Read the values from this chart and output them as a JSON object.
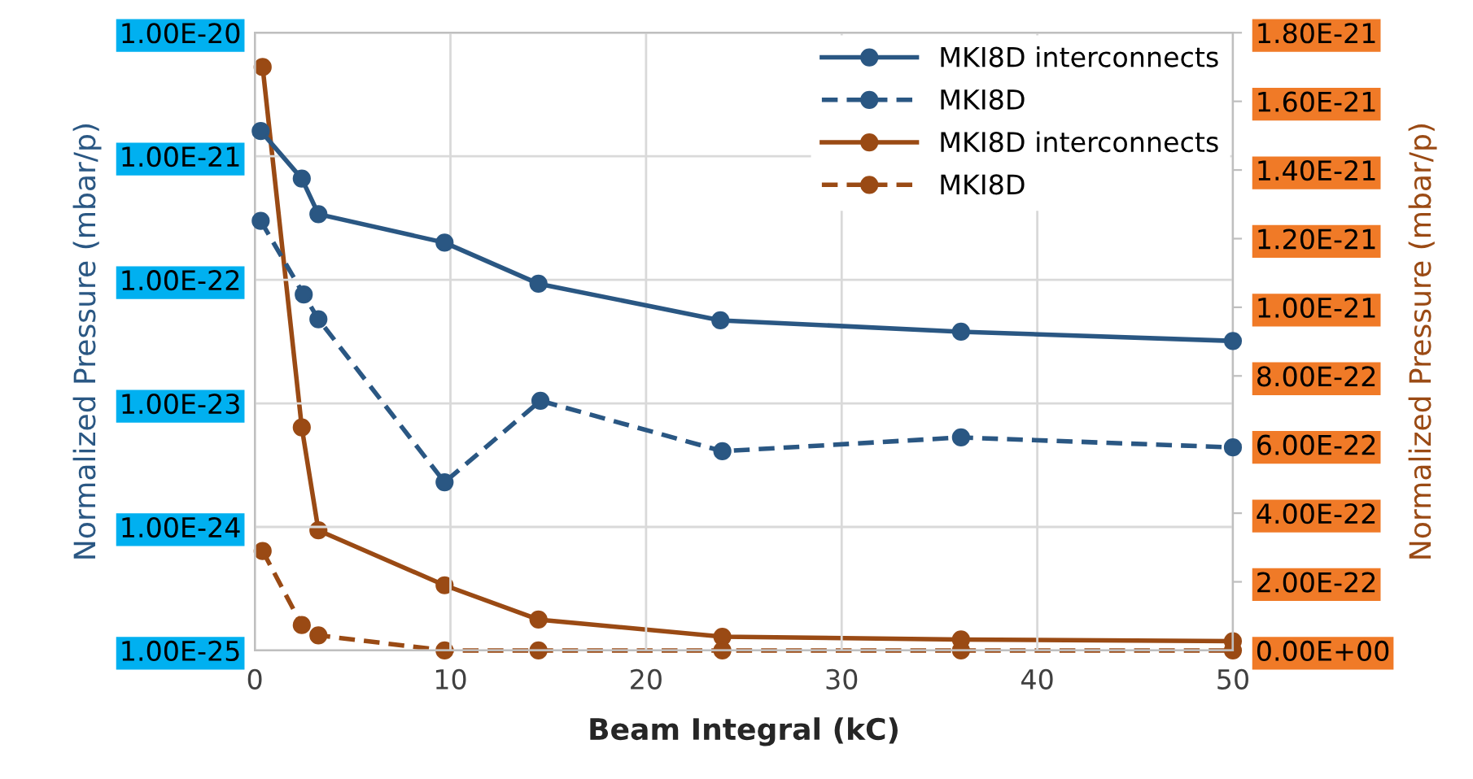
{
  "chart_data": {
    "type": "line",
    "xlabel": "Beam Integral (kC)",
    "ylabel": "Normalized Pressure (mbar/p)",
    "y2label": "Normalized Pressure (mbar/p)",
    "log": "y",
    "marker": "circle",
    "grid": true,
    "legend": "top right",
    "xlim": [
      0,
      50
    ],
    "xticks": [
      0,
      10,
      20,
      30,
      40,
      50
    ],
    "ylim": [
      1e-25,
      1e-20
    ],
    "yticks": [
      {
        "value": 1e-25,
        "label": "1.00E-25"
      },
      {
        "value": 1e-24,
        "label": "1.00E-24"
      },
      {
        "value": 1e-23,
        "label": "1.00E-23"
      },
      {
        "value": 1e-22,
        "label": "1.00E-22"
      },
      {
        "value": 1e-21,
        "label": "1.00E-21"
      },
      {
        "value": 1e-20,
        "label": "1.00E-20"
      }
    ],
    "y2lim": [
      0,
      1.8e-21
    ],
    "y2ticks": [
      {
        "value": 0,
        "label": "0.00E+00"
      },
      {
        "value": 2e-22,
        "label": "2.00E-22"
      },
      {
        "value": 4e-22,
        "label": "4.00E-22"
      },
      {
        "value": 6e-22,
        "label": "6.00E-22"
      },
      {
        "value": 8e-22,
        "label": "8.00E-22"
      },
      {
        "value": 1e-21,
        "label": "1.00E-21"
      },
      {
        "value": 1.2e-21,
        "label": "1.20E-21"
      },
      {
        "value": 1.4e-21,
        "label": "1.40E-21"
      },
      {
        "value": 1.6e-21,
        "label": "1.60E-21"
      },
      {
        "value": 1.8e-21,
        "label": "1.80E-21"
      }
    ],
    "series": [
      {
        "name": "MKI8D interconnects",
        "color": "#2a5783",
        "line_style": "solid",
        "x": [
          0.3,
          2.4,
          3.25,
          9.7,
          14.5,
          23.8,
          36.1,
          50
        ],
        "values": [
          1.6e-21,
          6.6e-22,
          3.4e-22,
          2e-22,
          9.3e-23,
          4.7e-23,
          3.8e-23,
          3.2e-23
        ]
      },
      {
        "name": "MKI8D",
        "color": "#2a5783",
        "line_style": "dashed",
        "x": [
          0.3,
          2.5,
          3.25,
          9.7,
          14.6,
          23.9,
          36.1,
          50
        ],
        "values": [
          3e-22,
          7.6e-23,
          4.8e-23,
          2.3e-24,
          1.05e-23,
          4.1e-24,
          5.3e-24,
          4.4e-24
        ]
      },
      {
        "name": "MKI8D interconnects",
        "color": "#9a4a14",
        "line_style": "solid",
        "axis": "y2",
        "x": [
          0.4,
          2.4,
          3.25,
          9.7,
          14.5,
          23.9,
          36.1,
          50
        ],
        "values": [
          1.7e-21,
          6.5e-22,
          3.5e-22,
          1.9e-22,
          9e-23,
          4e-23,
          3.2e-23,
          2.7e-23
        ]
      },
      {
        "name": "MKI8D",
        "color": "#9a4a14",
        "line_style": "dashed",
        "axis": "y2",
        "x": [
          0.4,
          2.4,
          3.25,
          9.7,
          14.5,
          23.9,
          36.1,
          50
        ],
        "values": [
          2.9e-22,
          7.4e-23,
          4.4e-23,
          0,
          0,
          0,
          0,
          0
        ]
      }
    ]
  }
}
